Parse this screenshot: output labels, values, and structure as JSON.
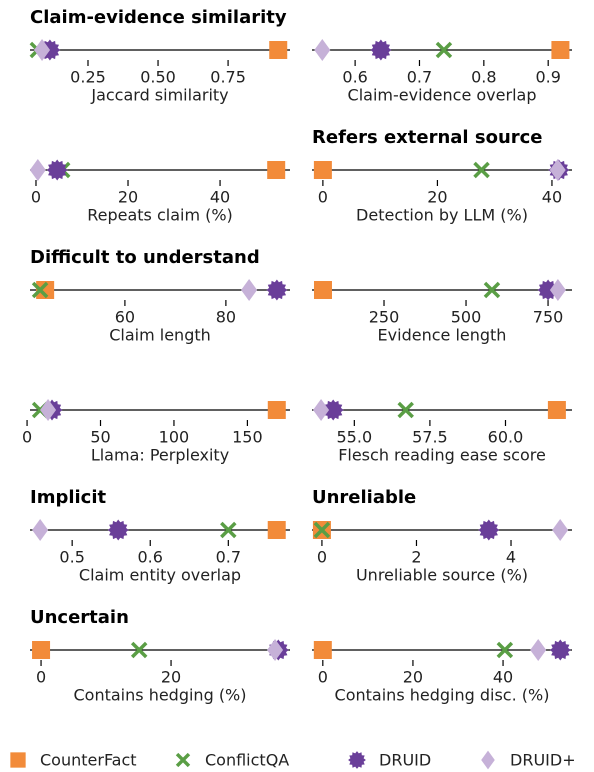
{
  "legend": [
    {
      "name": "CounterFact",
      "color": "#f28b3a",
      "marker": "square"
    },
    {
      "name": "ConflictQA",
      "color": "#5a9e45",
      "marker": "x"
    },
    {
      "name": "DRUID",
      "color": "#6a3f99",
      "marker": "octagon"
    },
    {
      "name": "DRUID+",
      "color": "#c6b1d8",
      "marker": "diamond"
    }
  ],
  "chart_data": [
    {
      "type": "dot",
      "title": "Claim-evidence similarity",
      "xlabel": "Jaccard similarity",
      "values": [
        0.929,
        0.071,
        0.114,
        0.086
      ],
      "xlim": [
        0.043,
        0.971
      ],
      "xticks": [
        0.25,
        {
          "value": 0.5,
          "label": "0.50"
        },
        0.75
      ]
    },
    {
      "type": "dot",
      "xlabel": "Claim-evidence overlap",
      "values": [
        0.919,
        0.738,
        0.64,
        0.549
      ],
      "xlim": [
        0.533,
        0.937
      ],
      "xticks": [
        0.6,
        0.7,
        0.8,
        0.9
      ]
    },
    {
      "type": "dot",
      "xlabel": "Repeats claim (%)",
      "values": [
        52.2,
        5.7,
        4.6,
        0.4
      ],
      "xlim": [
        -1.3,
        55.2
      ],
      "xticks": [
        0,
        20,
        40
      ]
    },
    {
      "type": "dot",
      "title": "Refers external source",
      "xlabel": "Detection by LLM (%)",
      "values": [
        0,
        27.7,
        41.2,
        41
      ],
      "xlim": [
        -1.9,
        43.5
      ],
      "xticks": [
        0,
        20,
        40
      ]
    },
    {
      "type": "dot",
      "title": "Difficult to understand",
      "xlabel": "Claim length",
      "values": [
        44.2,
        43.2,
        90.1,
        84.6
      ],
      "xlim": [
        41.2,
        92.7
      ],
      "xticks": [
        60,
        80
      ]
    },
    {
      "type": "dot",
      "xlabel": "Evidence length",
      "values": [
        64,
        579,
        750,
        780
      ],
      "xlim": [
        30.5,
        823
      ],
      "xticks": [
        250,
        500,
        750
      ]
    },
    {
      "type": "dot",
      "xlabel": "Llama: Perplexity",
      "values": [
        170,
        8.9,
        17,
        14.3
      ],
      "xlim": [
        2,
        179
      ],
      "xticks": [
        0,
        50,
        100,
        150
      ]
    },
    {
      "type": "dot",
      "xlabel": "Flesch reading ease score",
      "values": [
        61.7,
        56.7,
        54.3,
        53.9
      ],
      "xlim": [
        53.6,
        62.2
      ],
      "xticks": [
        {
          "value": 55,
          "label": "55.0"
        },
        57.5,
        {
          "value": 60,
          "label": "60.0"
        }
      ]
    },
    {
      "type": "dot",
      "title": "Implicit",
      "xlabel": "Claim entity overlap",
      "values": [
        0.762,
        0.7,
        0.559,
        0.459
      ],
      "xlim": [
        0.446,
        0.779
      ],
      "xticks": [
        0.5,
        0.6,
        0.7
      ]
    },
    {
      "type": "dot",
      "title": "Unreliable",
      "xlabel": "Unreliable source (%)",
      "values": [
        0,
        0,
        3.53,
        5.04
      ],
      "xlim": [
        -0.21,
        5.29
      ],
      "xticks": [
        0,
        2,
        4
      ]
    },
    {
      "type": "dot",
      "title": "Uncertain",
      "xlabel": "Contains hedging (%)",
      "values": [
        0,
        15.1,
        36.5,
        36
      ],
      "xlim": [
        -1.7,
        38.3
      ],
      "xticks": [
        0,
        20
      ]
    },
    {
      "type": "dot",
      "xlabel": "Contains hedging disc. (%)",
      "values": [
        0,
        40.4,
        52.7,
        47.8
      ],
      "xlim": [
        -2.4,
        55.3
      ],
      "xticks": [
        0,
        20,
        40
      ]
    }
  ]
}
